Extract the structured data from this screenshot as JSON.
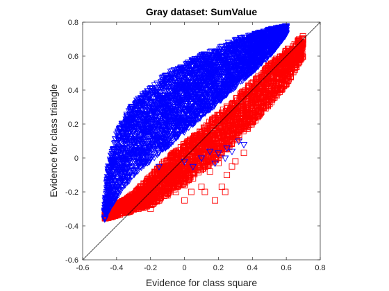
{
  "chart_data": {
    "type": "scatter",
    "title": "Gray dataset: SumValue",
    "xlabel": "Evidence for class square",
    "ylabel": "Evidence for class triangle",
    "xlim": [
      -0.6,
      0.8
    ],
    "ylim": [
      -0.6,
      0.8
    ],
    "xticks": [
      "-0.6",
      "-0.4",
      "-0.2",
      "0",
      "0.2",
      "0.4",
      "0.6",
      "0.8"
    ],
    "yticks": [
      "-0.6",
      "-0.4",
      "-0.2",
      "0",
      "0.2",
      "0.4",
      "0.6",
      "0.8"
    ],
    "grid": false,
    "reference_line": {
      "x": [
        -0.6,
        0.8
      ],
      "y": [
        -0.6,
        0.8
      ],
      "color": "#000000"
    },
    "series": [
      {
        "marker": "square",
        "color": "#ff0000",
        "band": {
          "lower": [
            [
              -0.47,
              -0.36
            ],
            [
              -0.2,
              -0.28
            ],
            [
              0.0,
              -0.15
            ],
            [
              0.2,
              0.0
            ],
            [
              0.4,
              0.2
            ],
            [
              0.6,
              0.43
            ],
            [
              0.7,
              0.6
            ]
          ],
          "upper": [
            [
              -0.47,
              -0.32
            ],
            [
              -0.3,
              -0.21
            ],
            [
              -0.1,
              0.0
            ],
            [
              0.1,
              0.17
            ],
            [
              0.3,
              0.35
            ],
            [
              0.5,
              0.55
            ],
            [
              0.7,
              0.72
            ]
          ]
        },
        "outliers": [
          {
            "x": -0.25,
            "y": -0.27
          },
          {
            "x": -0.2,
            "y": -0.3
          },
          {
            "x": -0.15,
            "y": -0.25
          },
          {
            "x": -0.05,
            "y": -0.2
          },
          {
            "x": 0.0,
            "y": -0.16
          },
          {
            "x": 0.05,
            "y": -0.12
          },
          {
            "x": 0.12,
            "y": -0.2
          },
          {
            "x": 0.18,
            "y": -0.25
          },
          {
            "x": 0.22,
            "y": -0.17
          },
          {
            "x": 0.25,
            "y": -0.1
          },
          {
            "x": 0.28,
            "y": -0.05
          },
          {
            "x": 0.3,
            "y": -0.02
          },
          {
            "x": 0.2,
            "y": -0.03
          },
          {
            "x": 0.15,
            "y": -0.08
          },
          {
            "x": 0.08,
            "y": -0.05
          },
          {
            "x": -0.1,
            "y": -0.22
          },
          {
            "x": -0.3,
            "y": -0.26
          },
          {
            "x": 0.1,
            "y": -0.17
          },
          {
            "x": -0.08,
            "y": -0.15
          },
          {
            "x": 0.35,
            "y": 0.03
          },
          {
            "x": 0.0,
            "y": -0.25
          },
          {
            "x": 0.24,
            "y": -0.2
          },
          {
            "x": -0.18,
            "y": -0.22
          },
          {
            "x": 0.04,
            "y": -0.2
          }
        ]
      },
      {
        "marker": "triangle-down",
        "color": "#0000ff",
        "band": {
          "lower": [
            [
              -0.47,
              -0.36
            ],
            [
              -0.4,
              -0.23
            ],
            [
              -0.3,
              -0.1
            ],
            [
              -0.1,
              0.07
            ],
            [
              0.1,
              0.24
            ],
            [
              0.3,
              0.42
            ],
            [
              0.5,
              0.6
            ],
            [
              0.6,
              0.73
            ]
          ],
          "upper": [
            [
              -0.47,
              -0.3
            ],
            [
              -0.45,
              -0.05
            ],
            [
              -0.4,
              0.15
            ],
            [
              -0.3,
              0.33
            ],
            [
              -0.1,
              0.5
            ],
            [
              0.1,
              0.61
            ],
            [
              0.3,
              0.7
            ],
            [
              0.5,
              0.76
            ],
            [
              0.6,
              0.78
            ]
          ]
        },
        "outliers": [
          {
            "x": 0.35,
            "y": 0.08
          },
          {
            "x": 0.32,
            "y": 0.1
          },
          {
            "x": 0.25,
            "y": 0.06
          },
          {
            "x": 0.2,
            "y": 0.03
          },
          {
            "x": 0.28,
            "y": 0.04
          },
          {
            "x": -0.25,
            "y": 0.18
          },
          {
            "x": -0.1,
            "y": 0.1
          },
          {
            "x": -0.35,
            "y": -0.08
          },
          {
            "x": 0.1,
            "y": 0.0
          },
          {
            "x": 0.24,
            "y": 0.0
          },
          {
            "x": 0.05,
            "y": -0.05
          },
          {
            "x": -0.05,
            "y": 0.21
          },
          {
            "x": 0.15,
            "y": 0.04
          },
          {
            "x": -0.2,
            "y": 0.2
          },
          {
            "x": 0.0,
            "y": -0.02
          },
          {
            "x": -0.15,
            "y": -0.05
          },
          {
            "x": 0.18,
            "y": -0.03
          }
        ]
      }
    ]
  }
}
